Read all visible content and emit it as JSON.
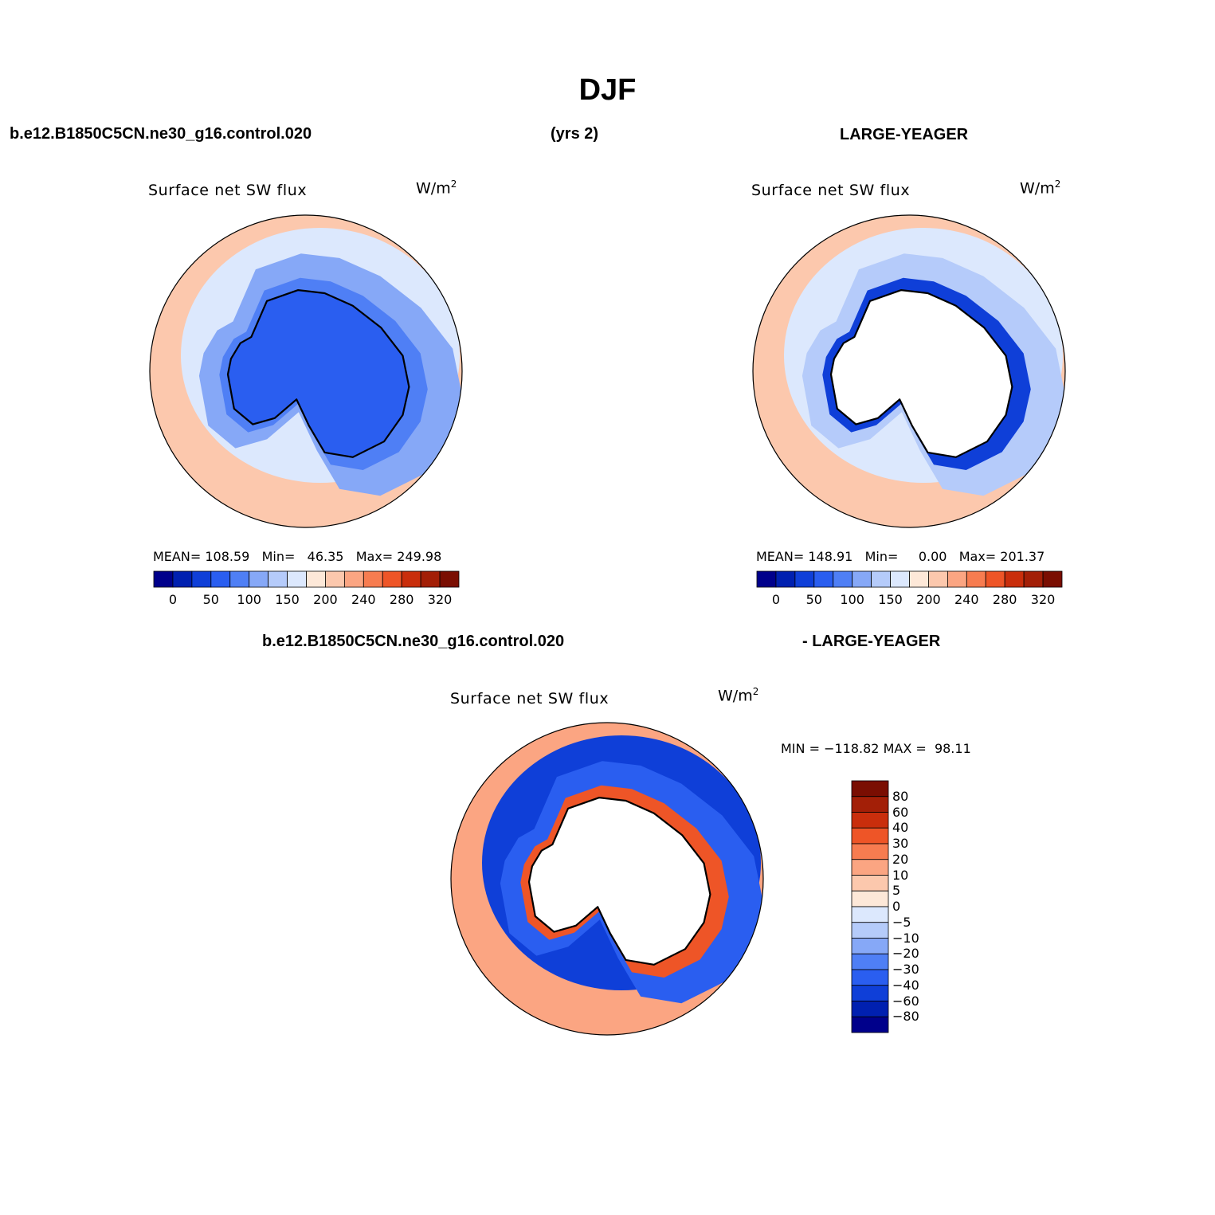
{
  "title": "DJF",
  "top_row": {
    "case_name": "b.e12.B1850C5CN.ne30_g16.control.020",
    "years": "(yrs 2)",
    "obs_name": "LARGE-YEAGER"
  },
  "bottom_row": {
    "case_name": "b.e12.B1850C5CN.ne30_g16.control.020",
    "obs_name": "- LARGE-YEAGER"
  },
  "colors": {
    "abs_scale": [
      "#00008b",
      "#0020b0",
      "#0f3fd8",
      "#2a5ef0",
      "#4f7ff5",
      "#86a8f7",
      "#b5cbfa",
      "#dce8fd",
      "#fde8d8",
      "#fcc8ad",
      "#fba582",
      "#f77c50",
      "#ee5527",
      "#c92e0c",
      "#a31f07",
      "#7a0e02"
    ],
    "diff_scale": [
      "#00008b",
      "#0020b0",
      "#0f3fd8",
      "#2a5ef0",
      "#4f7ff5",
      "#86a8f7",
      "#b5cbfa",
      "#dce8fd",
      "#fde8d8",
      "#fcc8ad",
      "#fba582",
      "#f77c50",
      "#ee5527",
      "#c92e0c",
      "#a31f07",
      "#7a0e02"
    ],
    "coast": "#000000"
  },
  "chart_data": [
    {
      "type": "heatmap",
      "projection": "south-polar-stereographic",
      "title": "Surface net SW flux",
      "units_base": "W/m",
      "units_exp": "2",
      "stats": {
        "mean_label": "MEAN=",
        "mean": "108.59",
        "min_label": "Min=",
        "min": "46.35",
        "max_label": "Max=",
        "max": "249.98"
      },
      "colorbar": {
        "orientation": "horizontal",
        "tick_labels": [
          "0",
          "50",
          "100",
          "150",
          "200",
          "240",
          "280",
          "320"
        ]
      },
      "regions": [
        {
          "name": "antarctic-continent",
          "value": 75
        },
        {
          "name": "coastal-ring",
          "value": 85
        },
        {
          "name": "sea-ice-zone",
          "value": 120
        },
        {
          "name": "southern-ocean",
          "value": 165
        },
        {
          "name": "mid-latitude-ocean",
          "value": 205
        }
      ]
    },
    {
      "type": "heatmap",
      "projection": "south-polar-stereographic",
      "title": "Surface net SW flux",
      "units_base": "W/m",
      "units_exp": "2",
      "stats": {
        "mean_label": "MEAN=",
        "mean": "148.91",
        "min_label": "Min=",
        "min": "0.00",
        "max_label": "Max=",
        "max": "201.37"
      },
      "colorbar": {
        "orientation": "horizontal",
        "tick_labels": [
          "0",
          "50",
          "100",
          "150",
          "200",
          "240",
          "280",
          "320"
        ]
      },
      "regions": [
        {
          "name": "antarctic-continent",
          "value": null
        },
        {
          "name": "coastal-ring",
          "value": 40
        },
        {
          "name": "sea-ice-zone",
          "value": 135
        },
        {
          "name": "southern-ocean",
          "value": 170
        },
        {
          "name": "mid-latitude-ocean",
          "value": 205
        }
      ]
    },
    {
      "type": "heatmap",
      "projection": "south-polar-stereographic",
      "title": "Surface net SW flux",
      "units_base": "W/m",
      "units_exp": "2",
      "stats": {
        "min_label": "MIN =",
        "min": "−118.82",
        "max_label": "MAX =",
        "max": "98.11"
      },
      "colorbar": {
        "orientation": "vertical",
        "tick_labels": [
          "80",
          "60",
          "40",
          "30",
          "20",
          "10",
          "5",
          "0",
          "−5",
          "−10",
          "−20",
          "−30",
          "−40",
          "−60",
          "−80"
        ]
      },
      "regions": [
        {
          "name": "antarctic-continent",
          "value": null
        },
        {
          "name": "coastal-ring",
          "value": 40
        },
        {
          "name": "sea-ice-zone",
          "value": -30
        },
        {
          "name": "southern-ocean",
          "value": -50
        },
        {
          "name": "mid-latitude-ocean",
          "value": 15
        }
      ]
    }
  ]
}
